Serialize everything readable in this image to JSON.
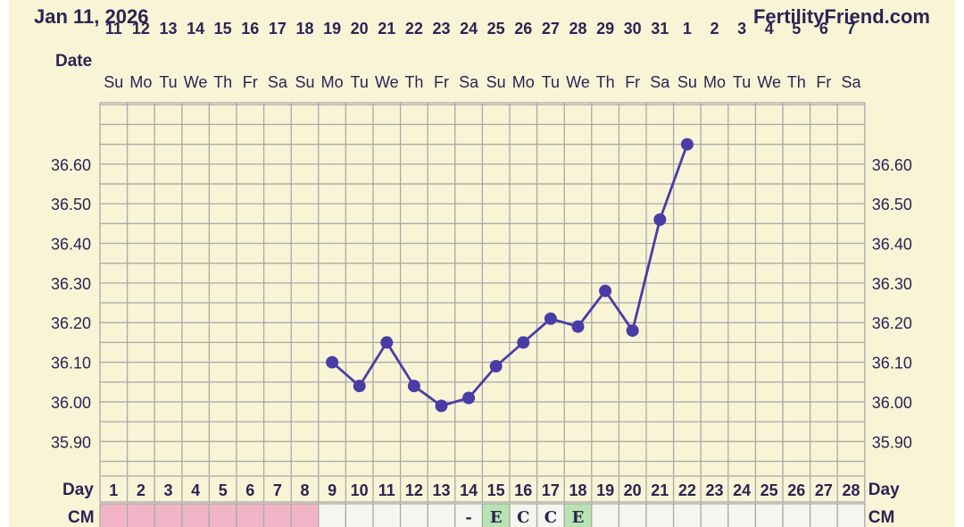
{
  "header": {
    "date": "Jan 11, 2026",
    "site": "FertilityFriend.com"
  },
  "labels": {
    "date_row": "Date",
    "day_row": "Day",
    "cm_row": "CM"
  },
  "colors": {
    "background": "#f9f4d6",
    "grid": "#a9a9a9",
    "line": "#4a3ca6",
    "text": "#2b2454",
    "period": "#f2b5c8",
    "cm_egg_white": "#b7e4b0",
    "cm_empty": "#f6f6f0"
  },
  "chart_data": {
    "type": "line",
    "dates": [
      "11",
      "12",
      "13",
      "14",
      "15",
      "16",
      "17",
      "18",
      "19",
      "20",
      "21",
      "22",
      "23",
      "24",
      "25",
      "26",
      "27",
      "28",
      "29",
      "30",
      "31",
      "1",
      "2",
      "3",
      "4",
      "5",
      "6",
      "7"
    ],
    "weekdays": [
      "Su",
      "Mo",
      "Tu",
      "We",
      "Th",
      "Fr",
      "Sa",
      "Su",
      "Mo",
      "Tu",
      "We",
      "Th",
      "Fr",
      "Sa",
      "Su",
      "Mo",
      "Tu",
      "We",
      "Th",
      "Fr",
      "Sa",
      "Su",
      "Mo",
      "Tu",
      "We",
      "Th",
      "Fr",
      "Sa"
    ],
    "cycle_days": [
      "1",
      "2",
      "3",
      "4",
      "5",
      "6",
      "7",
      "8",
      "9",
      "10",
      "11",
      "12",
      "13",
      "14",
      "15",
      "16",
      "17",
      "18",
      "19",
      "20",
      "21",
      "22",
      "23",
      "24",
      "25",
      "26",
      "27",
      "28"
    ],
    "temperatures": [
      null,
      null,
      null,
      null,
      null,
      null,
      null,
      null,
      36.1,
      36.04,
      36.15,
      36.04,
      35.99,
      36.01,
      36.09,
      36.15,
      36.21,
      36.19,
      36.28,
      36.18,
      36.46,
      36.65,
      null,
      null,
      null,
      null,
      null,
      null
    ],
    "y_ticks": [
      "35.90",
      "36.00",
      "36.10",
      "36.20",
      "36.30",
      "36.40",
      "36.50",
      "36.60"
    ],
    "ylim": [
      35.815,
      36.755
    ],
    "grid": true,
    "period_days": [
      1,
      2,
      3,
      4,
      5,
      6,
      7,
      8
    ],
    "cervical_mucus": [
      "",
      "",
      "",
      "",
      "",
      "",
      "",
      "",
      "",
      "",
      "",
      "",
      "",
      "-",
      "E",
      "C",
      "C",
      "E",
      "",
      "",
      "",
      "",
      "",
      "",
      "",
      "",
      "",
      ""
    ]
  }
}
